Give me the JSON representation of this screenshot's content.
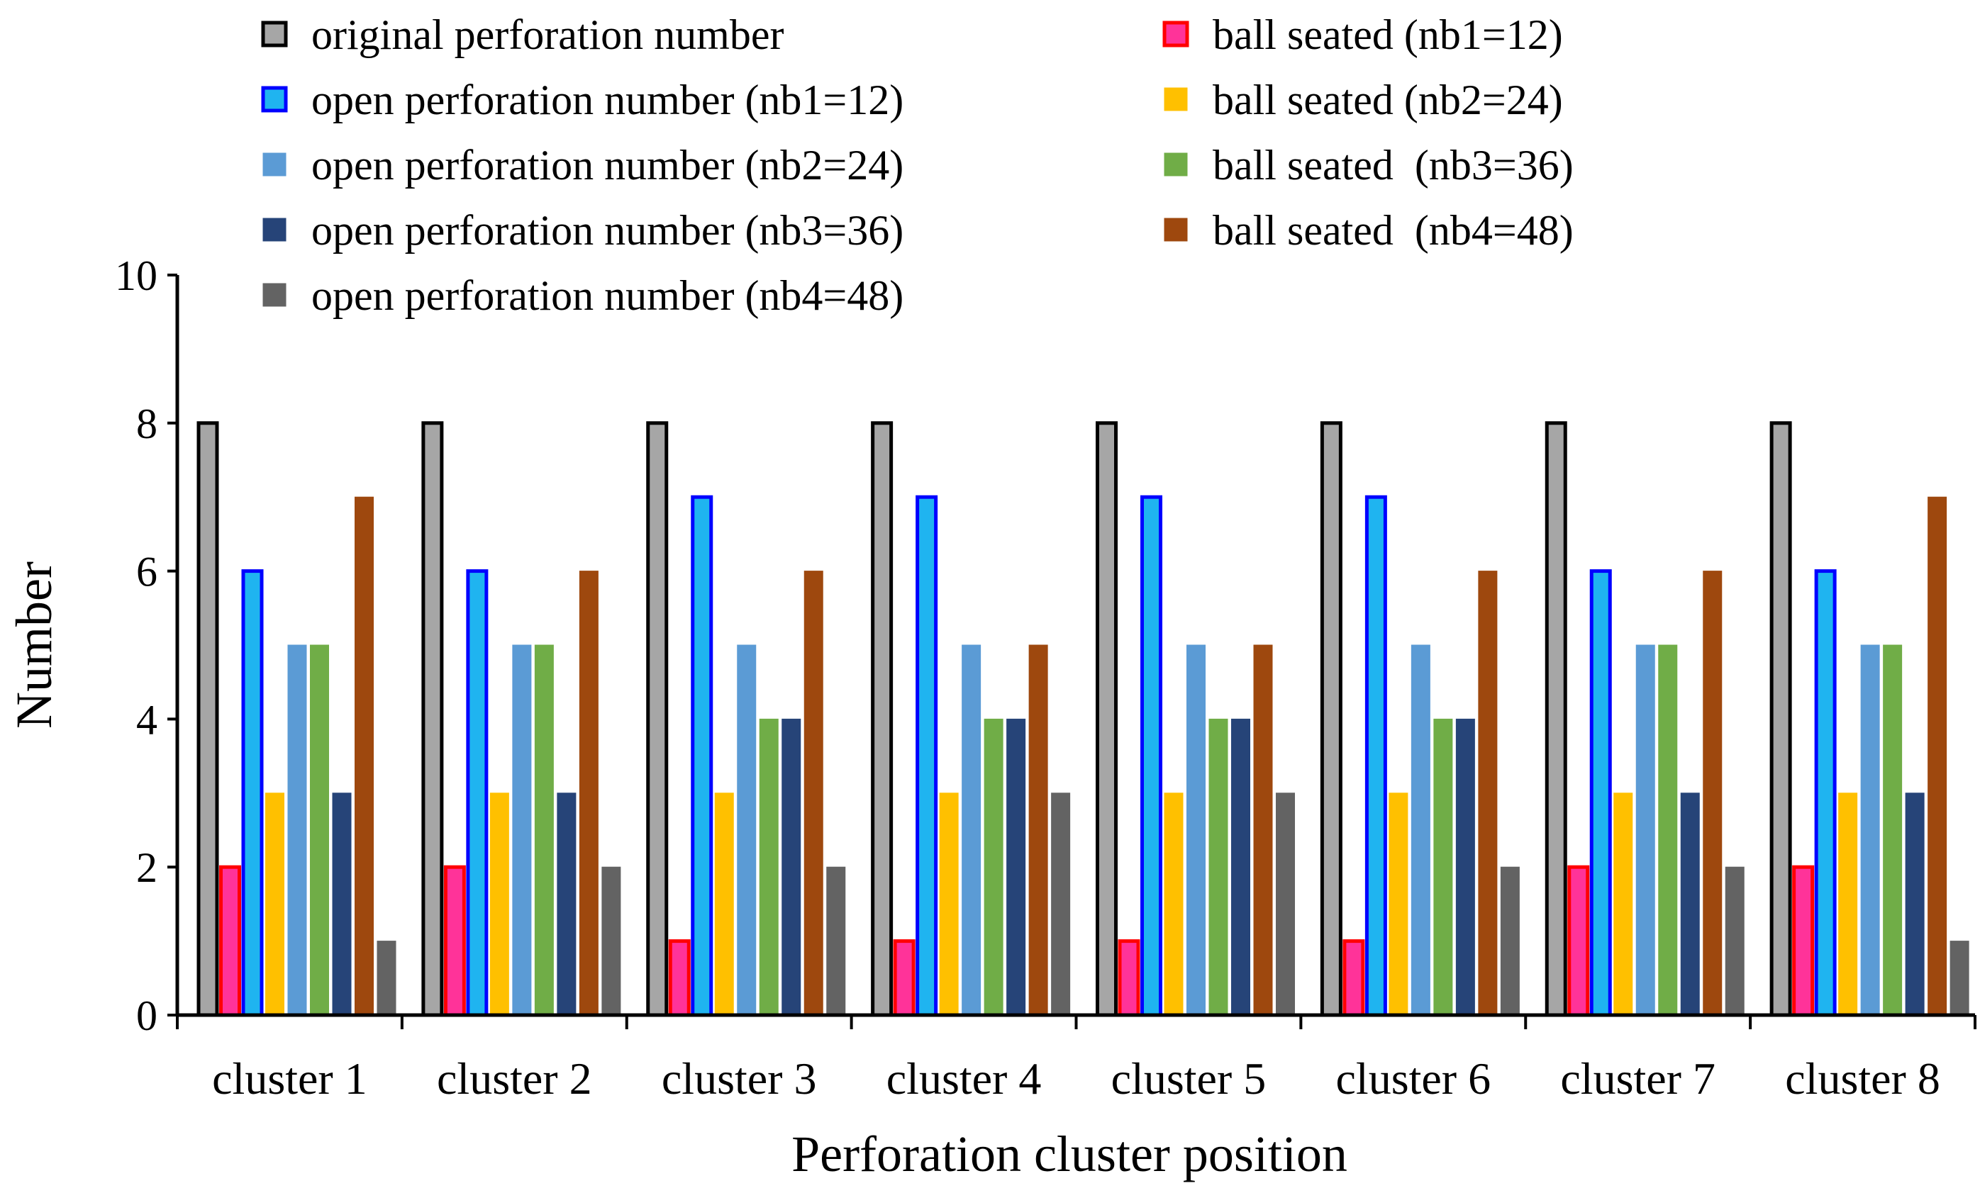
{
  "chart_data": {
    "type": "bar",
    "title": "",
    "xlabel": "Perforation cluster position",
    "ylabel": "Number",
    "ylim": [
      0,
      10
    ],
    "yticks": [
      "0",
      "2",
      "4",
      "6",
      "8",
      "10"
    ],
    "grid": false,
    "legend_position": "top",
    "categories": [
      "cluster 1",
      "cluster 2",
      "cluster 3",
      "cluster 4",
      "cluster 5",
      "cluster 6",
      "cluster 7",
      "cluster 8"
    ],
    "series": [
      {
        "name": "original perforation number",
        "color": "#A6A6A6",
        "border": "#000000",
        "values": [
          8,
          8,
          8,
          8,
          8,
          8,
          8,
          8
        ]
      },
      {
        "name": "ball seated (nb1=12)",
        "color": "#FF3399",
        "border": "#FF0000",
        "values": [
          2,
          2,
          1,
          1,
          1,
          1,
          2,
          2
        ]
      },
      {
        "name": "open perforation number (nb1=12)",
        "color": "#1FB4F0",
        "border": "#0000FF",
        "values": [
          6,
          6,
          7,
          7,
          7,
          7,
          6,
          6
        ]
      },
      {
        "name": "ball seated (nb2=24)",
        "color": "#FFC000",
        "border": "#FFC000",
        "values": [
          3,
          3,
          3,
          3,
          3,
          3,
          3,
          3
        ]
      },
      {
        "name": "open perforation number (nb2=24)",
        "color": "#5B9BD5",
        "border": "#5B9BD5",
        "values": [
          5,
          5,
          5,
          5,
          5,
          5,
          5,
          5
        ]
      },
      {
        "name": "ball seated  (nb3=36)",
        "color": "#70AD47",
        "border": "#70AD47",
        "values": [
          5,
          5,
          4,
          4,
          4,
          4,
          5,
          5
        ]
      },
      {
        "name": "open perforation number (nb3=36)",
        "color": "#264478",
        "border": "#264478",
        "values": [
          3,
          3,
          4,
          4,
          4,
          4,
          3,
          3
        ]
      },
      {
        "name": "ball seated  (nb4=48)",
        "color": "#9E480E",
        "border": "#9E480E",
        "values": [
          7,
          6,
          6,
          5,
          5,
          6,
          6,
          7
        ]
      },
      {
        "name": "open perforation number (nb4=48)",
        "color": "#636363",
        "border": "#636363",
        "values": [
          1,
          2,
          2,
          3,
          3,
          2,
          2,
          1
        ]
      }
    ],
    "legend_order": [
      "original perforation number",
      "open perforation number (nb1=12)",
      "open perforation number (nb2=24)",
      "open perforation number (nb3=36)",
      "open perforation number (nb4=48)",
      "ball seated (nb1=12)",
      "ball seated (nb2=24)",
      "ball seated  (nb3=36)",
      "ball seated  (nb4=48)"
    ]
  }
}
